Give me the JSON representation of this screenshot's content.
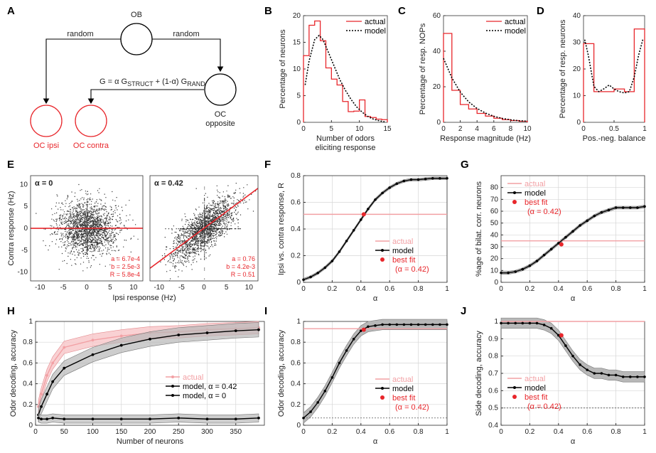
{
  "colors": {
    "actual": "#e8262b",
    "actual_light": "#f2a0a4",
    "model": "#000000",
    "band": "#b8b8b8",
    "band_red": "#f7c6c8",
    "grid": "#d6d6d6"
  },
  "panel_letters": [
    "A",
    "B",
    "C",
    "D",
    "E",
    "F",
    "G",
    "H",
    "I",
    "J"
  ],
  "schematic": {
    "ob": "OB",
    "random_left": "random",
    "random_right": "random",
    "formula_prefix": "G = α G",
    "formula_struct": "STRUCT",
    "formula_mid": " + (1-α) G",
    "formula_rand": "RAND",
    "oc_opposite": "OC",
    "oc_opposite_sub": "opposite",
    "oc_ipsi": "OC ipsi",
    "oc_contra": "OC contra"
  },
  "chart_data": [
    {
      "panel": "B",
      "type": "bar+line",
      "xlabel": "Number of odors\neliciting response",
      "ylabel": "Percentage of neurons",
      "xlim": [
        0,
        15
      ],
      "ylim": [
        0,
        20
      ],
      "xticks": [
        "0",
        "5",
        "10",
        "15"
      ],
      "yticks": [
        "0",
        "5",
        "10",
        "15",
        "20"
      ],
      "legend": [
        "actual",
        "model"
      ],
      "actual_bin_edges": [
        0,
        1,
        2,
        3,
        4,
        5,
        6,
        7,
        8,
        9,
        10,
        11,
        12,
        13,
        14,
        15
      ],
      "actual_values": [
        12.5,
        18.2,
        19.0,
        15.3,
        10.2,
        8.1,
        7.0,
        3.9,
        2.0,
        2.1,
        4.2,
        1.1,
        0.9,
        0.6,
        0.5
      ],
      "model_x": [
        0.3,
        1,
        2,
        2.8,
        3.5,
        4.5,
        5.5,
        6.5,
        7.5,
        8.5,
        9.5,
        10.5,
        11.5,
        12.5,
        13.5,
        14.5
      ],
      "model_y": [
        7,
        11.5,
        15.5,
        16.3,
        15.5,
        13,
        10.5,
        8,
        6,
        4.3,
        2.9,
        1.9,
        1.1,
        0.6,
        0.3,
        0.1
      ]
    },
    {
      "panel": "C",
      "type": "bar+line",
      "xlabel": "Response magnitude (Hz)",
      "ylabel": "Percentage of resp. NOPs",
      "xlim": [
        0,
        10
      ],
      "ylim": [
        0,
        60
      ],
      "xticks": [
        "0",
        "2",
        "4",
        "6",
        "8",
        "10"
      ],
      "yticks": [
        "0",
        "20",
        "40",
        "60"
      ],
      "legend": [
        "actual",
        "model"
      ],
      "actual_bin_edges": [
        0,
        1,
        2,
        3,
        4,
        5,
        6,
        7,
        8,
        9,
        10
      ],
      "actual_values": [
        50,
        18,
        10,
        7.5,
        5,
        3.5,
        2.3,
        1.5,
        1,
        0.6
      ],
      "model_x": [
        0,
        1,
        2,
        3,
        4,
        5,
        6,
        7,
        8,
        9,
        10
      ],
      "model_y": [
        36,
        25,
        17,
        11.5,
        7.8,
        5.2,
        3.4,
        2.2,
        1.4,
        0.9,
        0.6
      ]
    },
    {
      "panel": "D",
      "type": "bar+line",
      "xlabel": "Pos.-neg. balance",
      "ylabel": "Percentage of resp. neurons",
      "xlim": [
        0,
        1
      ],
      "ylim": [
        0,
        40
      ],
      "xticks": [
        "0",
        "0.5",
        "1"
      ],
      "yticks": [
        "0",
        "10",
        "20",
        "30",
        "40"
      ],
      "actual_bin_edges": [
        0,
        0.17,
        0.33,
        0.5,
        0.67,
        0.83,
        1.0
      ],
      "actual_values": [
        29.5,
        11.5,
        11.5,
        12.5,
        11.5,
        35
      ],
      "model_x": [
        0.02,
        0.08,
        0.17,
        0.25,
        0.33,
        0.42,
        0.5,
        0.58,
        0.67,
        0.75,
        0.83,
        0.9,
        0.97
      ],
      "model_y": [
        31,
        25,
        13.5,
        11.5,
        12.5,
        14,
        12.5,
        11.5,
        11,
        11.5,
        17,
        25,
        31
      ]
    },
    {
      "panel": "E",
      "type": "scatter",
      "xlabel": "Ipsi response (Hz)",
      "ylabel": "Contra response (Hz)",
      "xlim": [
        -12,
        12
      ],
      "ylim": [
        -12,
        12
      ],
      "xticks": [
        "-10",
        "-5",
        "0",
        "5",
        "10"
      ],
      "yticks": [
        "-10",
        "-5",
        "0",
        "5",
        "10"
      ],
      "subplots": [
        {
          "title": "α = 0",
          "slope": 0.00067,
          "stats": [
            "a = 6.7e-4",
            "b = 2.5e-3",
            "R = 5.8e-4"
          ]
        },
        {
          "title": "α = 0.42",
          "slope": 0.76,
          "stats": [
            "a = 0.76",
            "b = 4.2e-3",
            "R = 0.51"
          ]
        }
      ]
    },
    {
      "panel": "F",
      "type": "line",
      "xlabel": "α",
      "ylabel": "Ipsi vs. contra response, R",
      "xlim": [
        0,
        1
      ],
      "ylim": [
        0,
        0.8
      ],
      "xticks": [
        "0",
        "0.2",
        "0.4",
        "0.6",
        "0.8",
        "1"
      ],
      "yticks": [
        "0",
        "0.2",
        "0.4",
        "0.6",
        "0.8"
      ],
      "legend": [
        "actual",
        "model",
        "best fit",
        "(α = 0.42)"
      ],
      "actual_value": 0.51,
      "x": [
        0,
        0.05,
        0.1,
        0.15,
        0.2,
        0.25,
        0.3,
        0.35,
        0.4,
        0.45,
        0.5,
        0.55,
        0.6,
        0.65,
        0.7,
        0.75,
        0.8,
        0.85,
        0.9,
        0.95,
        1.0
      ],
      "y": [
        0.02,
        0.04,
        0.07,
        0.11,
        0.16,
        0.23,
        0.31,
        0.39,
        0.47,
        0.55,
        0.62,
        0.67,
        0.71,
        0.74,
        0.76,
        0.77,
        0.77,
        0.775,
        0.78,
        0.78,
        0.78
      ],
      "band": 0.01,
      "best_fit": [
        0.42,
        0.51
      ]
    },
    {
      "panel": "G",
      "type": "line",
      "xlabel": "α",
      "ylabel": "%age of bilat. corr. neurons",
      "xlim": [
        0,
        1
      ],
      "ylim": [
        0,
        90
      ],
      "xticks": [
        "0",
        "0.2",
        "0.4",
        "0.6",
        "0.8",
        "1"
      ],
      "yticks": [
        "0",
        "10",
        "20",
        "30",
        "40",
        "50",
        "60",
        "70",
        "80"
      ],
      "legend": [
        "actual",
        "model",
        "best fit",
        "(α = 0.42)"
      ],
      "actual_value": 35,
      "x": [
        0,
        0.05,
        0.1,
        0.15,
        0.2,
        0.25,
        0.3,
        0.35,
        0.4,
        0.45,
        0.5,
        0.55,
        0.6,
        0.65,
        0.7,
        0.75,
        0.8,
        0.85,
        0.9,
        0.95,
        1.0
      ],
      "y": [
        8,
        8,
        9,
        11,
        14,
        18,
        23,
        28,
        33,
        38,
        43,
        48,
        52,
        56,
        59,
        61,
        63,
        63,
        63,
        63,
        64
      ],
      "band": 1.2,
      "best_fit": [
        0.42,
        32
      ]
    },
    {
      "panel": "H",
      "type": "line",
      "xlabel": "Number of neurons",
      "ylabel": "Odor decoding, accuracy",
      "xlim": [
        0,
        400
      ],
      "ylim": [
        0,
        1
      ],
      "xticks": [
        "0",
        "50",
        "100",
        "150",
        "200",
        "250",
        "300",
        "350"
      ],
      "yticks": [
        "0",
        "0.2",
        "0.4",
        "0.6",
        "0.8",
        "1"
      ],
      "legend": [
        "actual",
        "model, α = 0.42",
        "model, α = 0"
      ],
      "series": [
        {
          "name": "actual",
          "x": [
            5,
            10,
            20,
            30,
            50,
            100,
            150,
            200,
            250,
            300,
            350,
            390
          ],
          "y": [
            0.18,
            0.3,
            0.48,
            0.6,
            0.75,
            0.82,
            0.86,
            0.89,
            0.9,
            0.92,
            0.93,
            0.94
          ],
          "band": 0.06
        },
        {
          "name": "model, α = 0.42",
          "x": [
            5,
            10,
            20,
            30,
            50,
            100,
            150,
            200,
            250,
            300,
            350,
            390
          ],
          "y": [
            0.1,
            0.18,
            0.3,
            0.42,
            0.55,
            0.68,
            0.77,
            0.83,
            0.87,
            0.89,
            0.91,
            0.92
          ],
          "band": 0.07
        },
        {
          "name": "model, α = 0",
          "x": [
            5,
            10,
            20,
            30,
            50,
            100,
            150,
            200,
            250,
            300,
            350,
            390
          ],
          "y": [
            0.07,
            0.06,
            0.06,
            0.07,
            0.06,
            0.06,
            0.06,
            0.06,
            0.07,
            0.06,
            0.06,
            0.07
          ],
          "band": 0.04
        }
      ]
    },
    {
      "panel": "I",
      "type": "line",
      "xlabel": "α",
      "ylabel": "Odor decoding, accuracy",
      "xlim": [
        0,
        1
      ],
      "ylim": [
        0,
        1
      ],
      "xticks": [
        "0",
        "0.2",
        "0.4",
        "0.6",
        "0.8",
        "1"
      ],
      "yticks": [
        "0",
        "0.2",
        "0.4",
        "0.6",
        "0.8",
        "1"
      ],
      "legend": [
        "actual",
        "model",
        "best fit",
        "(α = 0.42)"
      ],
      "actual_value": 0.93,
      "chance": 0.07,
      "x": [
        0,
        0.05,
        0.1,
        0.15,
        0.2,
        0.25,
        0.3,
        0.35,
        0.4,
        0.45,
        0.5,
        0.55,
        0.6,
        0.65,
        0.7,
        0.75,
        0.8,
        0.85,
        0.9,
        0.95,
        1.0
      ],
      "y": [
        0.07,
        0.13,
        0.22,
        0.33,
        0.46,
        0.6,
        0.72,
        0.83,
        0.91,
        0.95,
        0.96,
        0.97,
        0.97,
        0.97,
        0.97,
        0.97,
        0.97,
        0.97,
        0.97,
        0.97,
        0.97
      ],
      "band": 0.05,
      "best_fit": [
        0.42,
        0.92
      ]
    },
    {
      "panel": "J",
      "type": "line",
      "xlabel": "α",
      "ylabel": "Side decoding, accuracy",
      "xlim": [
        0,
        1
      ],
      "ylim": [
        0.4,
        1
      ],
      "xticks": [
        "0",
        "0.2",
        "0.4",
        "0.6",
        "0.8",
        "1"
      ],
      "yticks": [
        "0.4",
        "0.5",
        "0.6",
        "0.7",
        "0.8",
        "0.9",
        "1"
      ],
      "legend": [
        "actual",
        "model",
        "best fit",
        "(α = 0.42)"
      ],
      "actual_value": 1.0,
      "chance": 0.5,
      "x": [
        0,
        0.05,
        0.1,
        0.15,
        0.2,
        0.25,
        0.3,
        0.35,
        0.4,
        0.45,
        0.5,
        0.55,
        0.6,
        0.65,
        0.7,
        0.75,
        0.8,
        0.85,
        0.9,
        0.95,
        1.0
      ],
      "y": [
        0.99,
        0.99,
        0.99,
        0.99,
        0.99,
        0.99,
        0.98,
        0.96,
        0.92,
        0.86,
        0.8,
        0.75,
        0.72,
        0.7,
        0.7,
        0.69,
        0.69,
        0.68,
        0.68,
        0.68,
        0.68
      ],
      "band": 0.03,
      "best_fit": [
        0.42,
        0.92
      ]
    }
  ]
}
